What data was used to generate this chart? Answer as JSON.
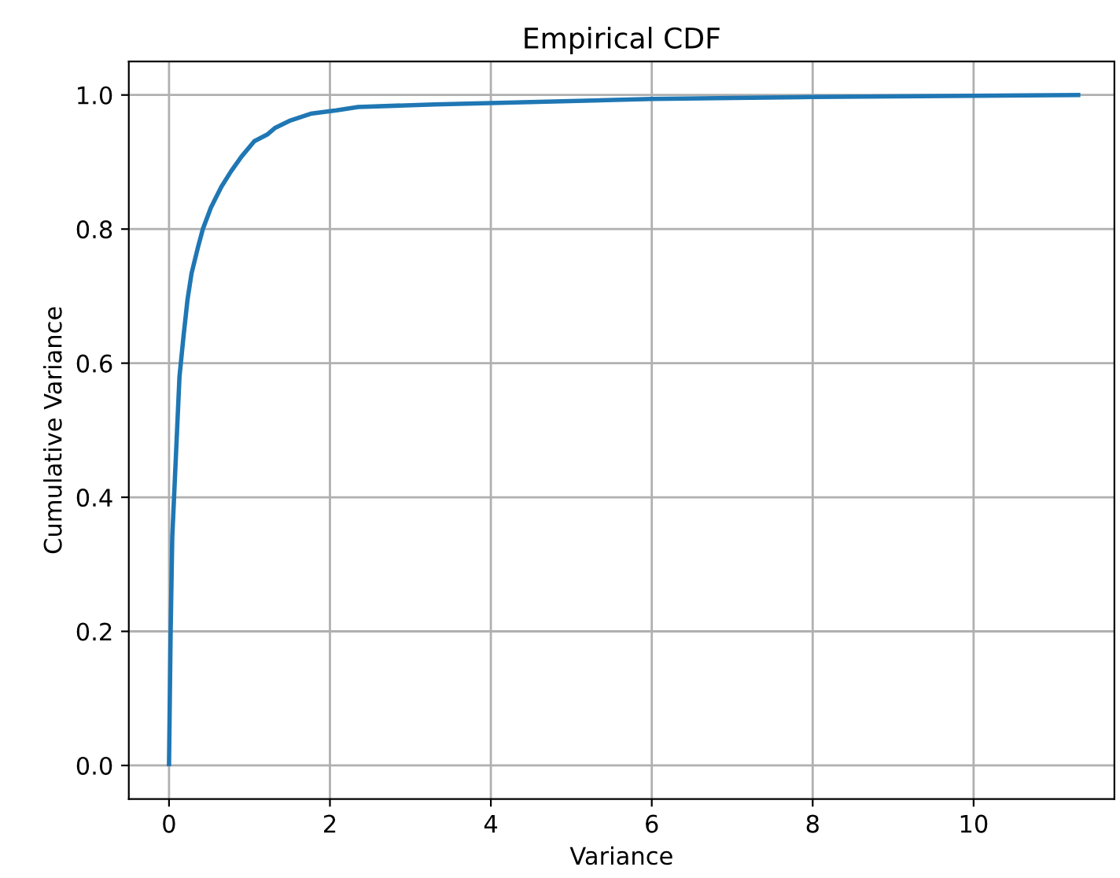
{
  "chart_data": {
    "type": "line",
    "title": "Empirical CDF",
    "xlabel": "Variance",
    "ylabel": "Cumulative Variance",
    "xlim": [
      -0.5,
      11.75
    ],
    "ylim": [
      -0.05,
      1.05
    ],
    "xticks": [
      0,
      2,
      4,
      6,
      8,
      10
    ],
    "yticks": [
      {
        "value": 0,
        "label": "0.0"
      },
      0.2,
      0.4,
      0.6,
      0.8,
      {
        "value": 1,
        "label": "1.0"
      }
    ],
    "grid": true,
    "series": [
      {
        "color": "#1f77b4",
        "x": [
          0,
          0.02,
          0.04,
          0.07,
          0.1,
          0.13,
          0.18,
          0.23,
          0.28,
          0.36,
          0.42,
          0.52,
          0.65,
          0.77,
          0.9,
          1.06,
          1.22,
          1.32,
          1.51,
          1.76,
          2.08,
          2.35,
          3.3,
          4.0,
          6.0,
          8.0,
          11.3
        ],
        "values": [
          0.002,
          0.2,
          0.34,
          0.42,
          0.5,
          0.58,
          0.64,
          0.695,
          0.734,
          0.773,
          0.8,
          0.832,
          0.863,
          0.886,
          0.908,
          0.931,
          0.941,
          0.951,
          0.962,
          0.972,
          0.977,
          0.982,
          0.986,
          0.988,
          0.994,
          0.997,
          1.0
        ]
      }
    ]
  }
}
